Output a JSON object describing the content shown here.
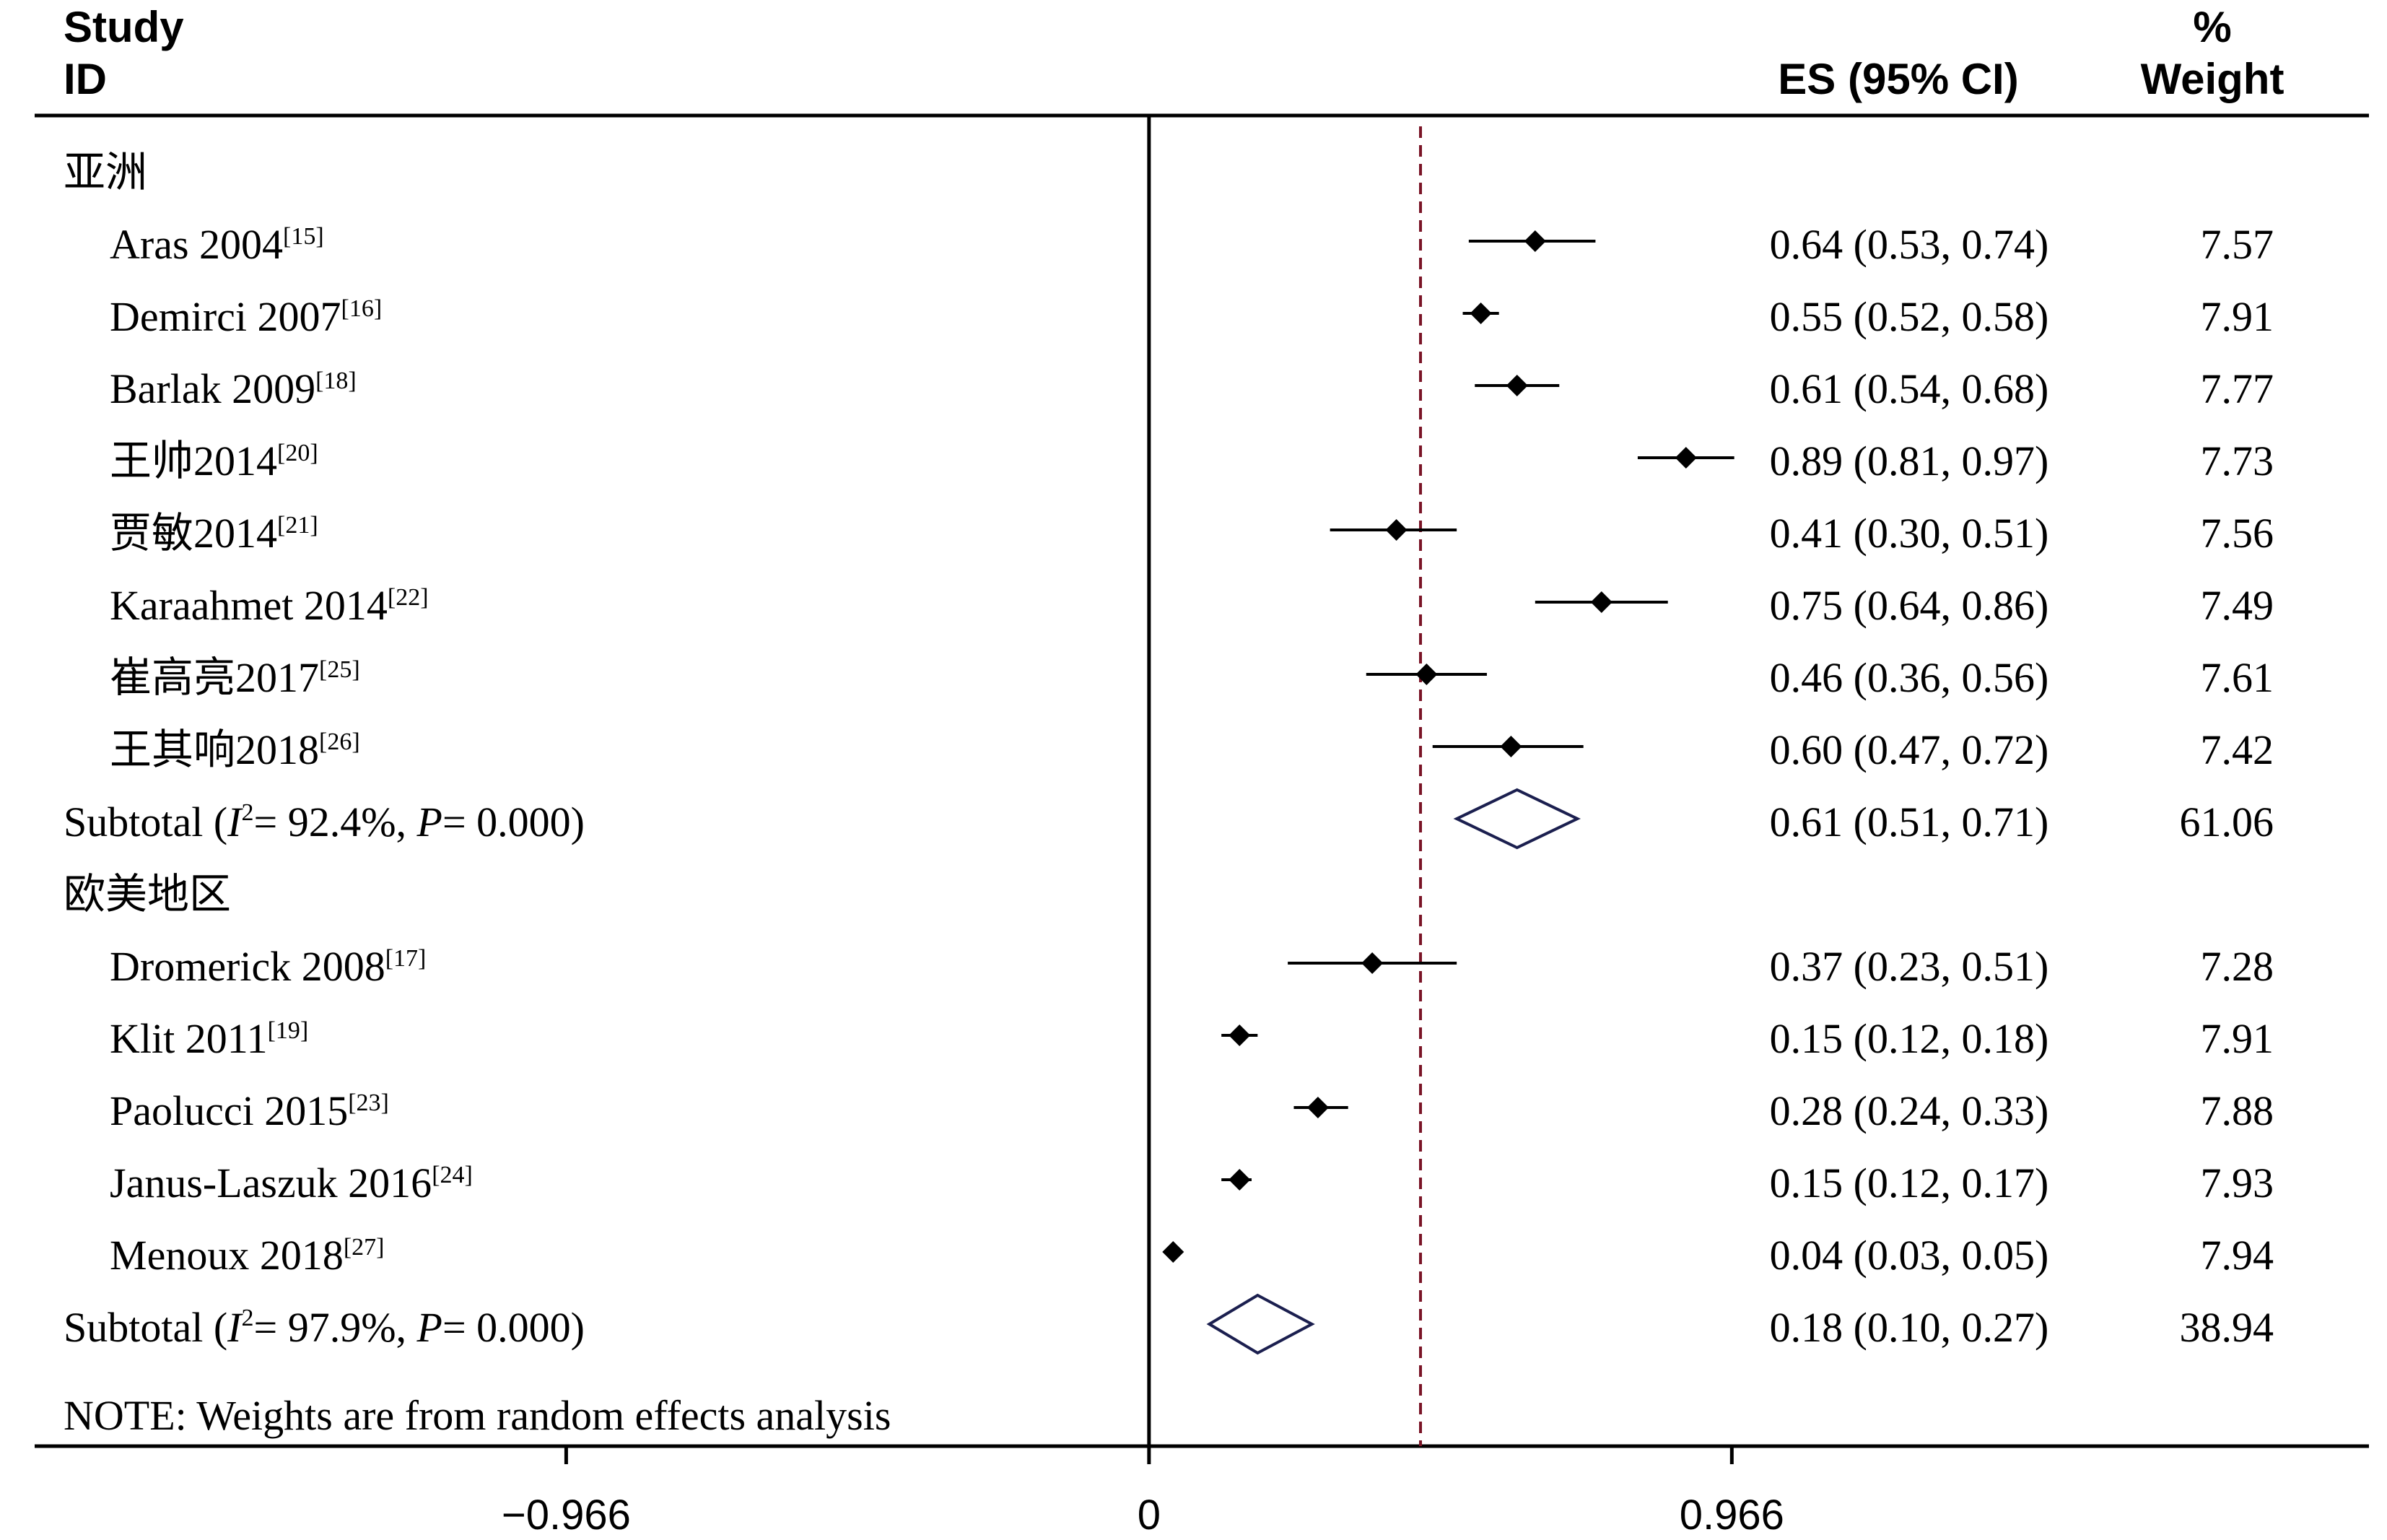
{
  "chart_data": {
    "type": "forest",
    "headers": {
      "study_line1": "Study",
      "study_line2": "ID",
      "es": "ES (95% CI)",
      "weight_line1": "%",
      "weight_line2": "Weight"
    },
    "groups": [
      {
        "name": "亚洲",
        "studies": [
          {
            "label": "Aras 2004",
            "ref": "[15]",
            "es": 0.64,
            "lo": 0.53,
            "hi": 0.74,
            "ci_text": "0.64 (0.53, 0.74)",
            "weight": "7.57"
          },
          {
            "label": "Demirci 2007",
            "ref": "[16]",
            "es": 0.55,
            "lo": 0.52,
            "hi": 0.58,
            "ci_text": "0.55 (0.52, 0.58)",
            "weight": "7.91"
          },
          {
            "label": "Barlak 2009",
            "ref": "[18]",
            "es": 0.61,
            "lo": 0.54,
            "hi": 0.68,
            "ci_text": "0.61 (0.54, 0.68)",
            "weight": "7.77"
          },
          {
            "label": "王帅2014",
            "ref": "[20]",
            "es": 0.89,
            "lo": 0.81,
            "hi": 0.97,
            "ci_text": "0.89 (0.81, 0.97)",
            "weight": "7.73"
          },
          {
            "label": "贾敏2014",
            "ref": "[21]",
            "es": 0.41,
            "lo": 0.3,
            "hi": 0.51,
            "ci_text": "0.41 (0.30, 0.51)",
            "weight": "7.56"
          },
          {
            "label": "Karaahmet 2014",
            "ref": "[22]",
            "es": 0.75,
            "lo": 0.64,
            "hi": 0.86,
            "ci_text": "0.75 (0.64, 0.86)",
            "weight": "7.49"
          },
          {
            "label": "崔高亮2017",
            "ref": "[25]",
            "es": 0.46,
            "lo": 0.36,
            "hi": 0.56,
            "ci_text": "0.46 (0.36, 0.56)",
            "weight": "7.61"
          },
          {
            "label": "王其响2018",
            "ref": "[26]",
            "es": 0.6,
            "lo": 0.47,
            "hi": 0.72,
            "ci_text": "0.60 (0.47, 0.72)",
            "weight": "7.42"
          }
        ],
        "subtotal": {
          "prefix": "Subtotal",
          "i2": "92.4%",
          "p": "0.000",
          "es": 0.61,
          "lo": 0.51,
          "hi": 0.71,
          "ci_text": "0.61 (0.51, 0.71)",
          "weight": "61.06"
        }
      },
      {
        "name": "欧美地区",
        "studies": [
          {
            "label": "Dromerick 2008",
            "ref": "[17]",
            "es": 0.37,
            "lo": 0.23,
            "hi": 0.51,
            "ci_text": "0.37 (0.23, 0.51)",
            "weight": "7.28"
          },
          {
            "label": "Klit 2011",
            "ref": "[19]",
            "es": 0.15,
            "lo": 0.12,
            "hi": 0.18,
            "ci_text": "0.15 (0.12, 0.18)",
            "weight": "7.91"
          },
          {
            "label": "Paolucci 2015",
            "ref": "[23]",
            "es": 0.28,
            "lo": 0.24,
            "hi": 0.33,
            "ci_text": "0.28 (0.24, 0.33)",
            "weight": "7.88"
          },
          {
            "label": "Janus-Laszuk 2016",
            "ref": "[24]",
            "es": 0.15,
            "lo": 0.12,
            "hi": 0.17,
            "ci_text": "0.15 (0.12, 0.17)",
            "weight": "7.93"
          },
          {
            "label": "Menoux 2018",
            "ref": "[27]",
            "es": 0.04,
            "lo": 0.03,
            "hi": 0.05,
            "ci_text": "0.04 (0.03, 0.05)",
            "weight": "7.94"
          }
        ],
        "subtotal": {
          "prefix": "Subtotal",
          "i2": "97.9%",
          "p": "0.000",
          "es": 0.18,
          "lo": 0.1,
          "hi": 0.27,
          "ci_text": "0.18 (0.10, 0.27)",
          "weight": "38.94"
        }
      }
    ],
    "overall_es": 0.45,
    "note": "NOTE: Weights are from random effects analysis",
    "x_ticks": [
      -0.966,
      0,
      0.966
    ],
    "x_tick_labels": [
      "−0.966",
      "0",
      "0.966"
    ],
    "xlim": [
      -1.847,
      2.022
    ],
    "colors": {
      "marker": "#000000",
      "diamond": "#1b1f4f",
      "reference_line": "#7a1426",
      "axis": "#000000"
    },
    "grid": false
  }
}
